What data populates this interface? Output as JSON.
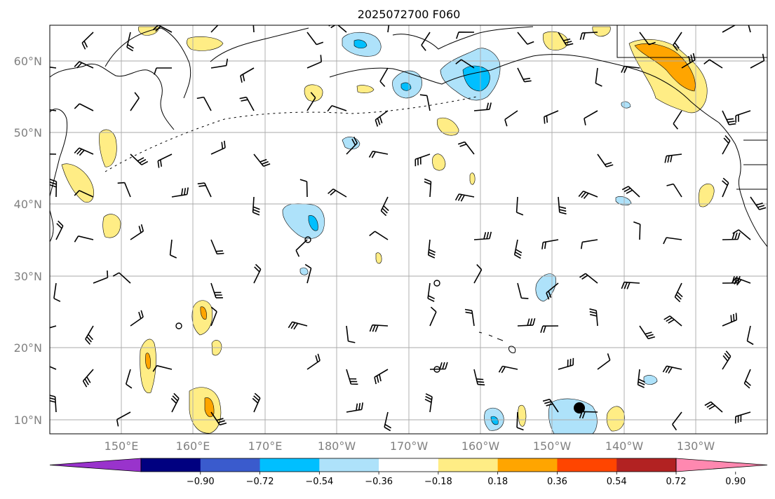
{
  "title": "2025072700 F060",
  "map": {
    "lat_labels": [
      "10°N",
      "20°N",
      "30°N",
      "40°N",
      "50°N",
      "60°N"
    ],
    "lon_labels": [
      "150°E",
      "160°E",
      "170°E",
      "180°W",
      "170°W",
      "160°W",
      "150°W",
      "140°W",
      "130°W"
    ],
    "gridlines": true,
    "features": [
      "coastlines",
      "wind-barbs",
      "shaded-contours",
      "storm-marker"
    ]
  },
  "colorbar": {
    "labels": [
      "−0.90",
      "−0.72",
      "−0.54",
      "−0.36",
      "−0.18",
      "0.18",
      "0.36",
      "0.54",
      "0.72",
      "0.90"
    ],
    "colors": [
      "#9933cc",
      "#000080",
      "#3a5bcd",
      "#00bfff",
      "#aee2fa",
      "#ffffff",
      "#ffed85",
      "#ffa500",
      "#ff4500",
      "#b22222",
      "#ff88b0"
    ]
  },
  "colors": {
    "neg_light": "#aee2fa",
    "neg_mid": "#00bfff",
    "pos_light": "#ffed85",
    "pos_mid": "#ffa500",
    "grid": "#aaaaaa"
  }
}
